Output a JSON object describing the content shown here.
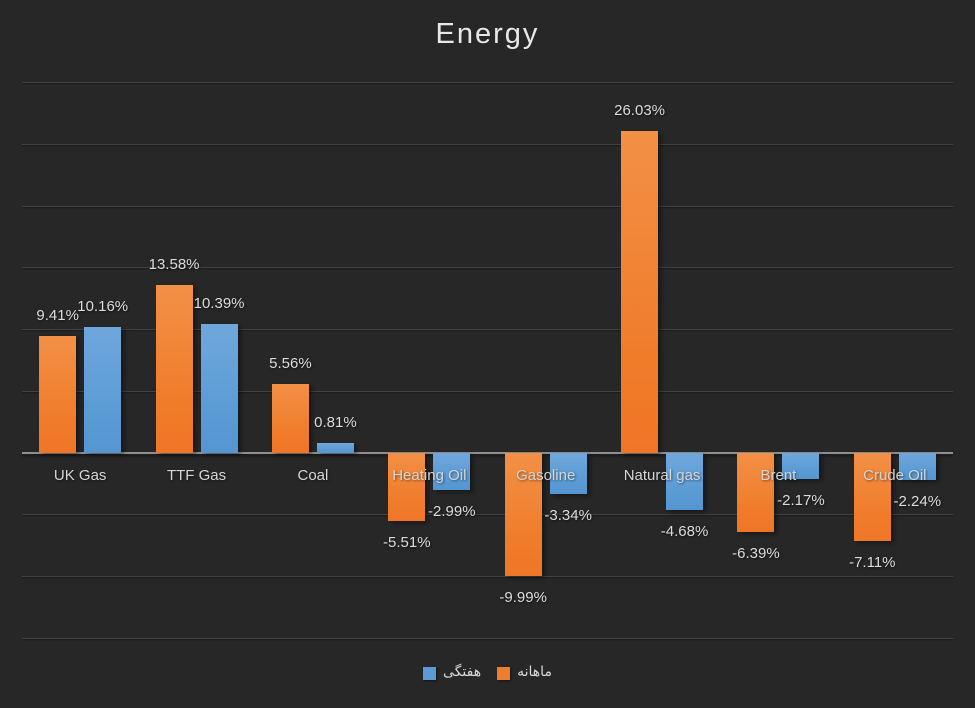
{
  "chart_data": {
    "type": "bar",
    "title": "Energy",
    "categories": [
      "UK Gas",
      "TTF Gas",
      "Coal",
      "Heating Oil",
      "Gasoline",
      "Natural gas",
      "Brent",
      "Crude Oil"
    ],
    "series": [
      {
        "name": "ماهانه",
        "color": "#ED7D31",
        "values": [
          9.41,
          13.58,
          5.56,
          -5.51,
          -9.99,
          26.03,
          -6.39,
          -7.11
        ]
      },
      {
        "name": "هفتگی",
        "color": "#5B9BD5",
        "values": [
          10.16,
          10.39,
          0.81,
          -2.99,
          -3.34,
          -4.68,
          -2.17,
          -2.24
        ]
      }
    ],
    "data_labels": {
      "series_0": [
        "9.41%",
        "13.58%",
        "5.56%",
        "-5.51%",
        "-9.99%",
        "26.03%",
        "-6.39%",
        "-7.11%"
      ],
      "series_1": [
        "10.16%",
        "10.39%",
        "0.81%",
        "-2.99%",
        "-3.34%",
        "-4.68%",
        "-2.17%",
        "-2.24%"
      ]
    },
    "value_suffix": "%",
    "ylim": [
      -15,
      30
    ],
    "gridline_step": 5,
    "grid": true,
    "y_axis_labels_visible": false,
    "legend_position": "bottom",
    "legend": [
      {
        "label": "هفتگی",
        "color": "#5B9BD5",
        "series": "s1"
      },
      {
        "label": "ماهانه",
        "color": "#ED7D31",
        "series": "s0"
      }
    ]
  },
  "colors": {
    "background": "#272727",
    "gridline": "#424242",
    "axis_line": "#8f8f8f",
    "title_text": "#e8e8e8",
    "label_text": "#dcdcdc",
    "orange_series": "#ED7D31",
    "blue_series": "#5B9BD5"
  }
}
